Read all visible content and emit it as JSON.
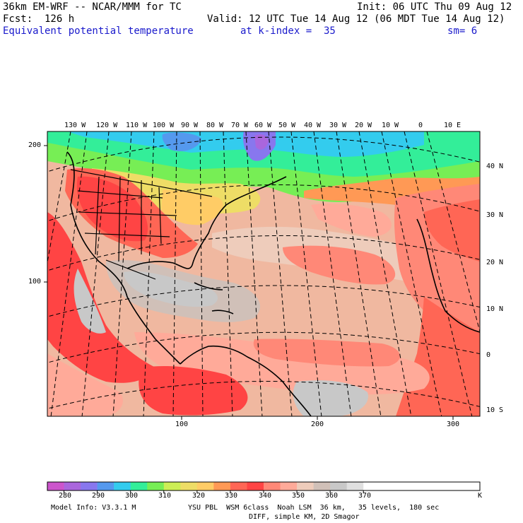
{
  "header": {
    "model": "36km EM-WRF -- NCAR/MMM for TC",
    "init": "Init: 06 UTC Thu 09 Aug 12",
    "fcst": "Fcst:  126 h",
    "valid": "Valid: 12 UTC Tue 14 Aug 12 (06 MDT Tue 14 Aug 12)",
    "field": "Equivalent potential temperature",
    "level": "at k-index =  35",
    "smooth": "sm= 6"
  },
  "map": {
    "lon_labels": [
      "130 W",
      "120 W",
      "110 W",
      "100 W",
      "90 W",
      "80 W",
      "70 W",
      "60 W",
      "50 W",
      "40 W",
      "30 W",
      "20 W",
      "10 W",
      "0",
      "10 E"
    ],
    "lat_labels": [
      "40 N",
      "30 N",
      "20 N",
      "10 N",
      "0",
      "10 S"
    ],
    "y_grid_labels": [
      "200",
      "100"
    ],
    "x_grid_labels": [
      "100",
      "200",
      "300"
    ]
  },
  "colorbar": {
    "colors": [
      "#cc55cc",
      "#aa66dd",
      "#8877ee",
      "#5599ee",
      "#33ccee",
      "#33ee99",
      "#77ee55",
      "#ccee55",
      "#eedd66",
      "#ffcc66",
      "#ff9955",
      "#ff6655",
      "#ff4444",
      "#ff8877",
      "#ffaa99",
      "#eeccbb",
      "#d0c0b8",
      "#c8c8c8",
      "#e0e0e0",
      "#ffffff",
      "#ffffff",
      "#ffffff",
      "#ffffff",
      "#ffffff",
      "#ffffff",
      "#ffffff"
    ],
    "tick_labels": [
      "280",
      "290",
      "300",
      "310",
      "320",
      "330",
      "340",
      "350",
      "360",
      "370"
    ],
    "unit": "K"
  },
  "footer": {
    "info": "Model Info: V3.3.1 M",
    "physics": "YSU PBL  WSM 6class  Noah LSM  36 km,   35 levels,  180 sec",
    "diff": "DIFF, simple KM, 2D Smagor"
  }
}
